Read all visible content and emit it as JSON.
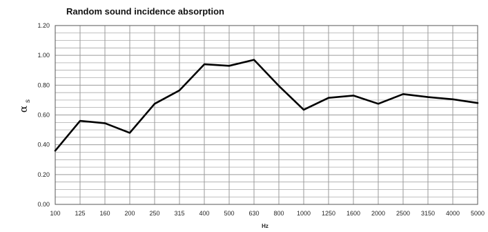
{
  "chart_data": {
    "type": "line",
    "title": "Random sound incidence absorption",
    "xlabel": "Hz",
    "ylabel": "α",
    "ylabel_subscript": "s",
    "categories": [
      "100",
      "125",
      "160",
      "200",
      "250",
      "315",
      "400",
      "500",
      "630",
      "800",
      "1000",
      "1250",
      "1600",
      "2000",
      "2500",
      "3150",
      "4000",
      "5000"
    ],
    "series": [
      {
        "values": [
          0.36,
          0.56,
          0.545,
          0.48,
          0.675,
          0.765,
          0.94,
          0.93,
          0.97,
          0.795,
          0.635,
          0.715,
          0.73,
          0.675,
          0.74,
          0.72,
          0.705,
          0.68
        ]
      }
    ],
    "ylim": [
      0,
      1.2
    ],
    "yticks": [
      "0.00",
      "0.20",
      "0.40",
      "0.60",
      "0.80",
      "1.00",
      "1.20"
    ],
    "grid": true,
    "colors": {
      "line": "#000000",
      "grid": "#9a9a9a",
      "axis": "#555555"
    }
  }
}
